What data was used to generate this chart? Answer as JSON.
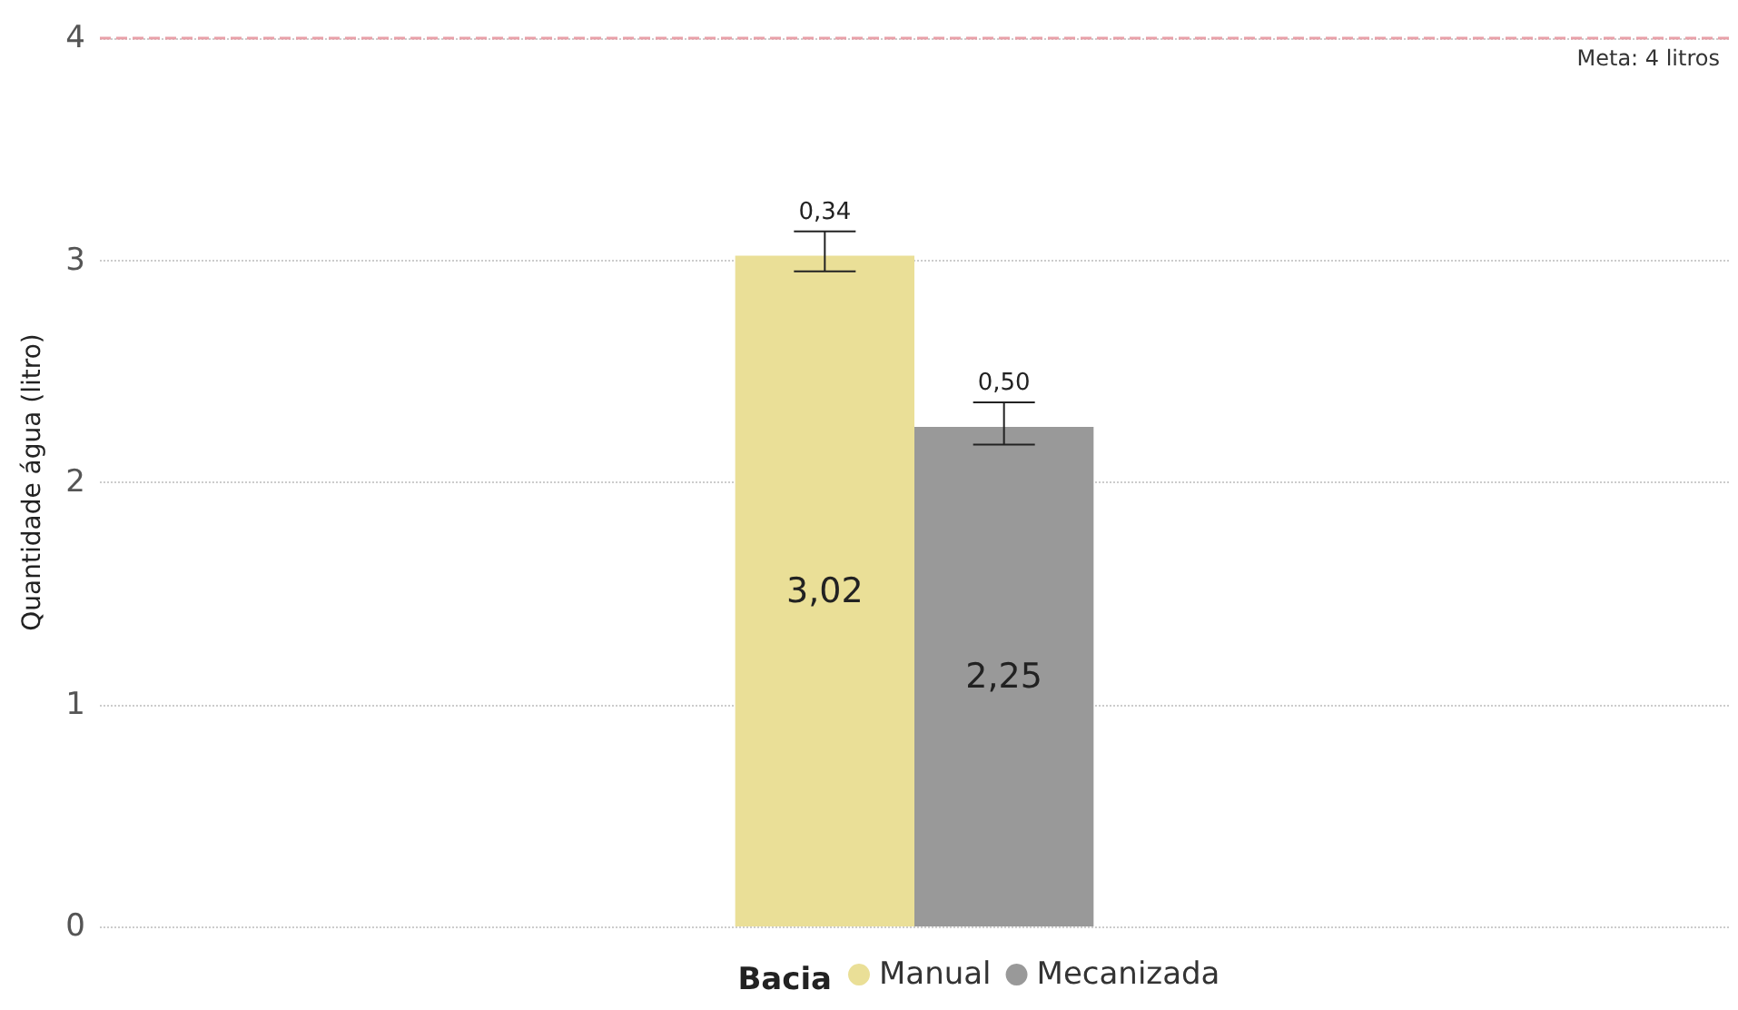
{
  "chart_data": {
    "type": "bar",
    "ylabel": "Quantidade água (litro)",
    "legend_title": "Bacia",
    "categories": [
      null
    ],
    "series": [
      {
        "name": "Manual",
        "color": "#eadf97",
        "values": [
          3.02
        ],
        "value_labels": [
          "3,02"
        ],
        "errors": [
          [
            2.95,
            3.13
          ]
        ]
      },
      {
        "name": "Mecanizada",
        "color": "#999999",
        "values": [
          2.25
        ],
        "value_labels": [
          "2,25"
        ],
        "errors": [
          [
            2.17,
            2.36
          ]
        ]
      }
    ],
    "annotations": [
      {
        "text": "0,34",
        "y": 3.13
      },
      {
        "text": "0,50",
        "y": 2.36
      }
    ],
    "ylim": [
      0,
      4
    ],
    "yticks": [
      0,
      1,
      2,
      3,
      4
    ],
    "grid": "y",
    "legend": "bottom",
    "ref_lines": [
      {
        "axis": "y",
        "value": 4,
        "label": "Meta: 4 litros",
        "color": "#e8a0a8",
        "line_style": "dashed"
      }
    ]
  }
}
